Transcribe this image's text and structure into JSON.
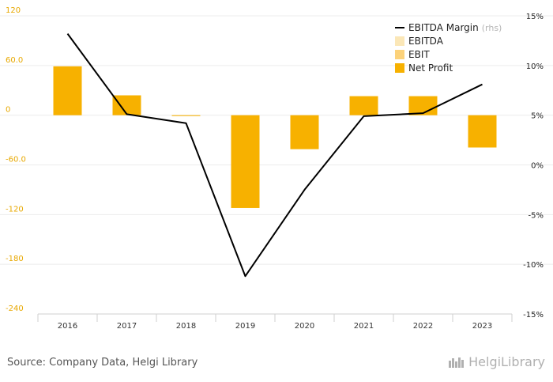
{
  "chart_data": {
    "type": "bar",
    "categories": [
      "2016",
      "2017",
      "2018",
      "2019",
      "2020",
      "2021",
      "2022",
      "2023"
    ],
    "series": [
      {
        "name": "EBITDA",
        "type": "bar",
        "values": [
          null,
          null,
          null,
          null,
          null,
          null,
          null,
          null
        ]
      },
      {
        "name": "EBIT",
        "type": "bar",
        "values": [
          null,
          null,
          null,
          null,
          null,
          null,
          null,
          null
        ]
      },
      {
        "name": "Net Profit",
        "type": "bar",
        "values": [
          59,
          24,
          -1,
          -112,
          -41,
          23,
          23,
          -39
        ]
      },
      {
        "name": "EBITDA Margin",
        "type": "line",
        "axis": "right",
        "values": [
          13.2,
          5.1,
          4.2,
          -11.2,
          -2.5,
          4.9,
          5.2,
          8.1
        ]
      }
    ],
    "legend": {
      "placement": "top-right",
      "items": [
        "EBITDA Margin",
        "EBITDA",
        "EBIT",
        "Net Profit"
      ],
      "rhs_suffix": "(rhs)"
    },
    "y_left": {
      "ylim": [
        -240,
        120
      ],
      "ticks": [
        120,
        60,
        0,
        -60,
        -120,
        -180,
        -240
      ],
      "tick_labels": [
        "120",
        "60.0",
        "0",
        "-60.0",
        "-120",
        "-180",
        "-240"
      ]
    },
    "y_right": {
      "ylim": [
        -15,
        15
      ],
      "ticks": [
        15,
        10,
        5,
        0,
        -5,
        -10,
        -15
      ],
      "tick_labels": [
        "15%",
        "10%",
        "5%",
        "0%",
        "-5%",
        "-10%",
        "-15%"
      ]
    },
    "grid": true,
    "colors": {
      "EBITDA": "#fbe7b7",
      "EBIT": "#fcd27a",
      "Net Profit": "#f7b100",
      "EBITDA Margin": "#000000",
      "left_axis_text": "#e8a800"
    }
  },
  "footer": {
    "source": "Source: Company Data, Helgi Library",
    "brand": "HelgiLibrary"
  }
}
